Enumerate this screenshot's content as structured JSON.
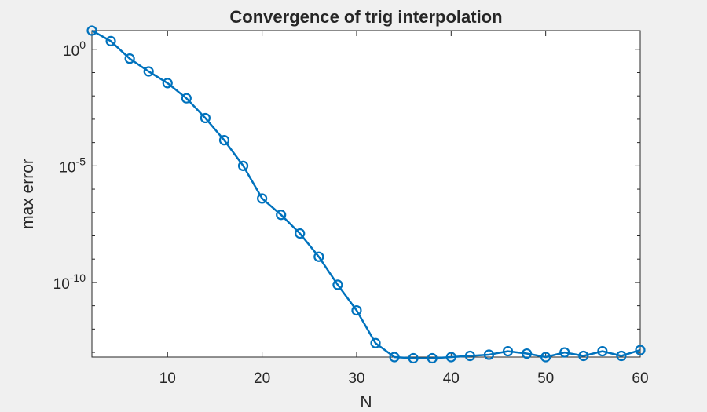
{
  "chart_data": {
    "type": "line",
    "title": "Convergence of trig interpolation",
    "xlabel": "N",
    "ylabel": "max error",
    "xlim": [
      2,
      60
    ],
    "ylim_log10": [
      -13.2,
      0.8
    ],
    "yscale": "log",
    "x_ticks": [
      10,
      20,
      30,
      40,
      50,
      60
    ],
    "y_ticks": [
      {
        "mantissa": "10",
        "exponent": "0",
        "log10": 0
      },
      {
        "mantissa": "10",
        "exponent": "-5",
        "log10": -5
      },
      {
        "mantissa": "10",
        "exponent": "-10",
        "log10": -10
      }
    ],
    "grid": false,
    "legend": "none",
    "marker": "circle",
    "color": "#0072BD",
    "series": [
      {
        "x": [
          2,
          4,
          6,
          8,
          10,
          12,
          14,
          16,
          18,
          20,
          22,
          24,
          26,
          28,
          30,
          32,
          34,
          36,
          38,
          40,
          42,
          44,
          46,
          48,
          50,
          52,
          54,
          56,
          58,
          60
        ],
        "log10_y": [
          0.8,
          0.35,
          -0.4,
          -0.95,
          -1.45,
          -2.1,
          -2.95,
          -3.9,
          -5.0,
          -6.4,
          -7.1,
          -7.9,
          -8.9,
          -10.1,
          -11.2,
          -12.6,
          -13.2,
          -13.25,
          -13.25,
          -13.2,
          -13.15,
          -13.1,
          -12.95,
          -13.05,
          -13.2,
          -13.0,
          -13.15,
          -12.95,
          -13.15,
          -12.9
        ]
      }
    ]
  }
}
